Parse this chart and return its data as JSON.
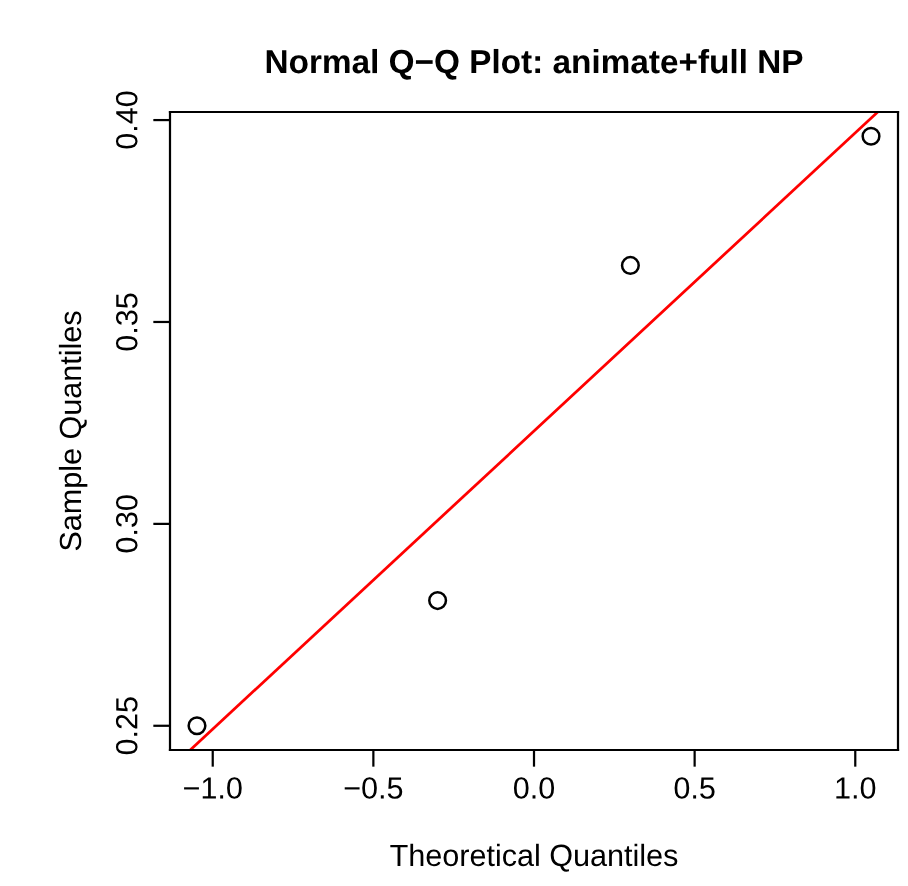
{
  "chart_data": {
    "type": "scatter",
    "title": "Normal Q−Q Plot: animate+full NP",
    "xlabel": "Theoretical Quantiles",
    "ylabel": "Sample Quantiles",
    "series": [
      {
        "color": "#000000",
        "marker": "circle",
        "x": [
          -1.049,
          -0.3,
          0.3,
          1.049
        ],
        "values": [
          0.25,
          0.281,
          0.364,
          0.396
        ]
      },
      {
        "type": "line",
        "color": "#ff0000",
        "marker": "none",
        "line_style": "solid",
        "x": [
          -1.07,
          1.07
        ],
        "values": [
          0.244,
          0.402
        ]
      }
    ],
    "xlim": [
      -1.133,
      1.133
    ],
    "ylim": [
      0.244,
      0.402
    ],
    "xticks": [
      {
        "value": -1.0,
        "label": "−1.0"
      },
      {
        "value": -0.5,
        "label": "−0.5"
      },
      {
        "value": 0.0,
        "label": "0.0"
      },
      {
        "value": 0.5,
        "label": "0.5"
      },
      {
        "value": 1.0,
        "label": "1.0"
      }
    ],
    "yticks": [
      {
        "value": 0.25,
        "label": "0.25"
      },
      {
        "value": 0.3,
        "label": "0.30"
      },
      {
        "value": 0.35,
        "label": "0.35"
      },
      {
        "value": 0.4,
        "label": "0.40"
      }
    ],
    "grid": false,
    "legend": false
  }
}
